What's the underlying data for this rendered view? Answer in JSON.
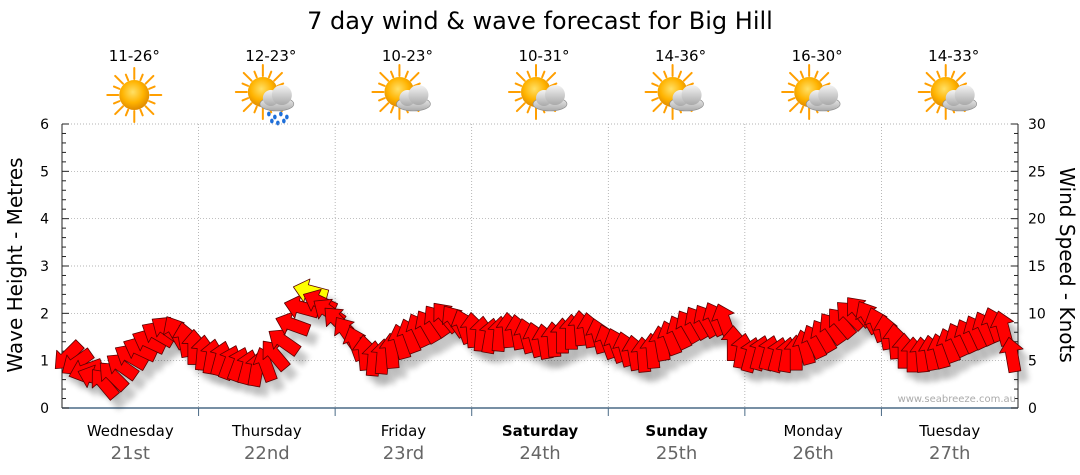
{
  "chart_data": {
    "type": "line",
    "title": "7 day wind & wave forecast for Big Hill",
    "ylabel_left": "Wave Height - Metres",
    "ylabel_right": "Wind Speed - Knots",
    "ylim_left": [
      0,
      6
    ],
    "ylim_right": [
      0,
      30
    ],
    "yticks_left": [
      "0",
      "1",
      "2",
      "3",
      "4",
      "5",
      "6"
    ],
    "yticks_right": [
      "0",
      "5",
      "10",
      "15",
      "20",
      "25",
      "30"
    ],
    "grid": true,
    "days": [
      {
        "day": "Wednesday",
        "date": "21st",
        "temp": "11-26°",
        "weather": "sunny",
        "bold": false
      },
      {
        "day": "Thursday",
        "date": "22nd",
        "temp": "12-23°",
        "weather": "partly-cloudy-rain",
        "bold": false
      },
      {
        "day": "Friday",
        "date": "23rd",
        "temp": "10-23°",
        "weather": "partly-cloudy",
        "bold": false
      },
      {
        "day": "Saturday",
        "date": "24th",
        "temp": "10-31°",
        "weather": "partly-cloudy",
        "bold": true
      },
      {
        "day": "Sunday",
        "date": "25th",
        "temp": "14-36°",
        "weather": "partly-cloudy",
        "bold": true
      },
      {
        "day": "Monday",
        "date": "26th",
        "temp": "16-30°",
        "weather": "partly-cloudy",
        "bold": false
      },
      {
        "day": "Tuesday",
        "date": "27th",
        "temp": "14-33°",
        "weather": "partly-cloudy",
        "bold": false
      }
    ],
    "series": [
      {
        "name": "Wind Speed",
        "units": "knots",
        "color": "#ff0000",
        "highlight_color": "#ffff00",
        "values": [
          5.5,
          4.8,
          4.0,
          3.2,
          2.6,
          3.4,
          4.4,
          5.4,
          6.2,
          7.0,
          7.8,
          8.3,
          8.0,
          7.2,
          6.4,
          5.8,
          5.4,
          5.2,
          4.8,
          4.6,
          4.3,
          4.1,
          4.6,
          5.6,
          7.0,
          8.8,
          10.6,
          12.3,
          11.2,
          10.2,
          9.2,
          8.0,
          6.8,
          5.8,
          5.2,
          5.4,
          6.0,
          7.0,
          7.6,
          8.2,
          8.6,
          9.2,
          9.6,
          9.2,
          8.6,
          8.2,
          7.8,
          7.6,
          7.8,
          8.2,
          8.0,
          7.6,
          7.2,
          7.0,
          7.2,
          7.6,
          8.0,
          8.4,
          8.2,
          7.6,
          7.0,
          6.6,
          6.2,
          5.8,
          5.6,
          6.0,
          6.8,
          7.4,
          8.0,
          8.6,
          9.0,
          9.2,
          9.4,
          9.2,
          6.8,
          6.0,
          5.6,
          5.8,
          5.8,
          5.6,
          5.6,
          5.8,
          6.4,
          7.0,
          7.6,
          8.4,
          9.0,
          9.8,
          10.2,
          9.6,
          8.8,
          8.0,
          7.0,
          6.0,
          5.6,
          5.6,
          5.8,
          6.0,
          6.6,
          7.2,
          7.6,
          8.0,
          8.4,
          8.8,
          8.4,
          5.6
        ],
        "directions_deg": [
          135,
          145,
          160,
          200,
          230,
          225,
          215,
          210,
          205,
          205,
          210,
          215,
          240,
          260,
          270,
          275,
          280,
          285,
          290,
          290,
          285,
          280,
          250,
          230,
          215,
          200,
          195,
          195,
          205,
          215,
          225,
          235,
          250,
          265,
          275,
          275,
          265,
          255,
          250,
          245,
          240,
          235,
          230,
          235,
          250,
          265,
          275,
          280,
          275,
          265,
          260,
          255,
          255,
          260,
          265,
          270,
          270,
          265,
          260,
          255,
          250,
          250,
          255,
          260,
          265,
          265,
          260,
          250,
          245,
          240,
          240,
          240,
          245,
          250,
          270,
          280,
          285,
          285,
          285,
          285,
          280,
          270,
          255,
          245,
          240,
          235,
          230,
          225,
          230,
          240,
          250,
          260,
          265,
          270,
          270,
          265,
          260,
          255,
          250,
          245,
          245,
          245,
          245,
          250,
          255,
          260
        ],
        "highlight_index": 27
      }
    ]
  },
  "credit": "www.seabreeze.com.au"
}
